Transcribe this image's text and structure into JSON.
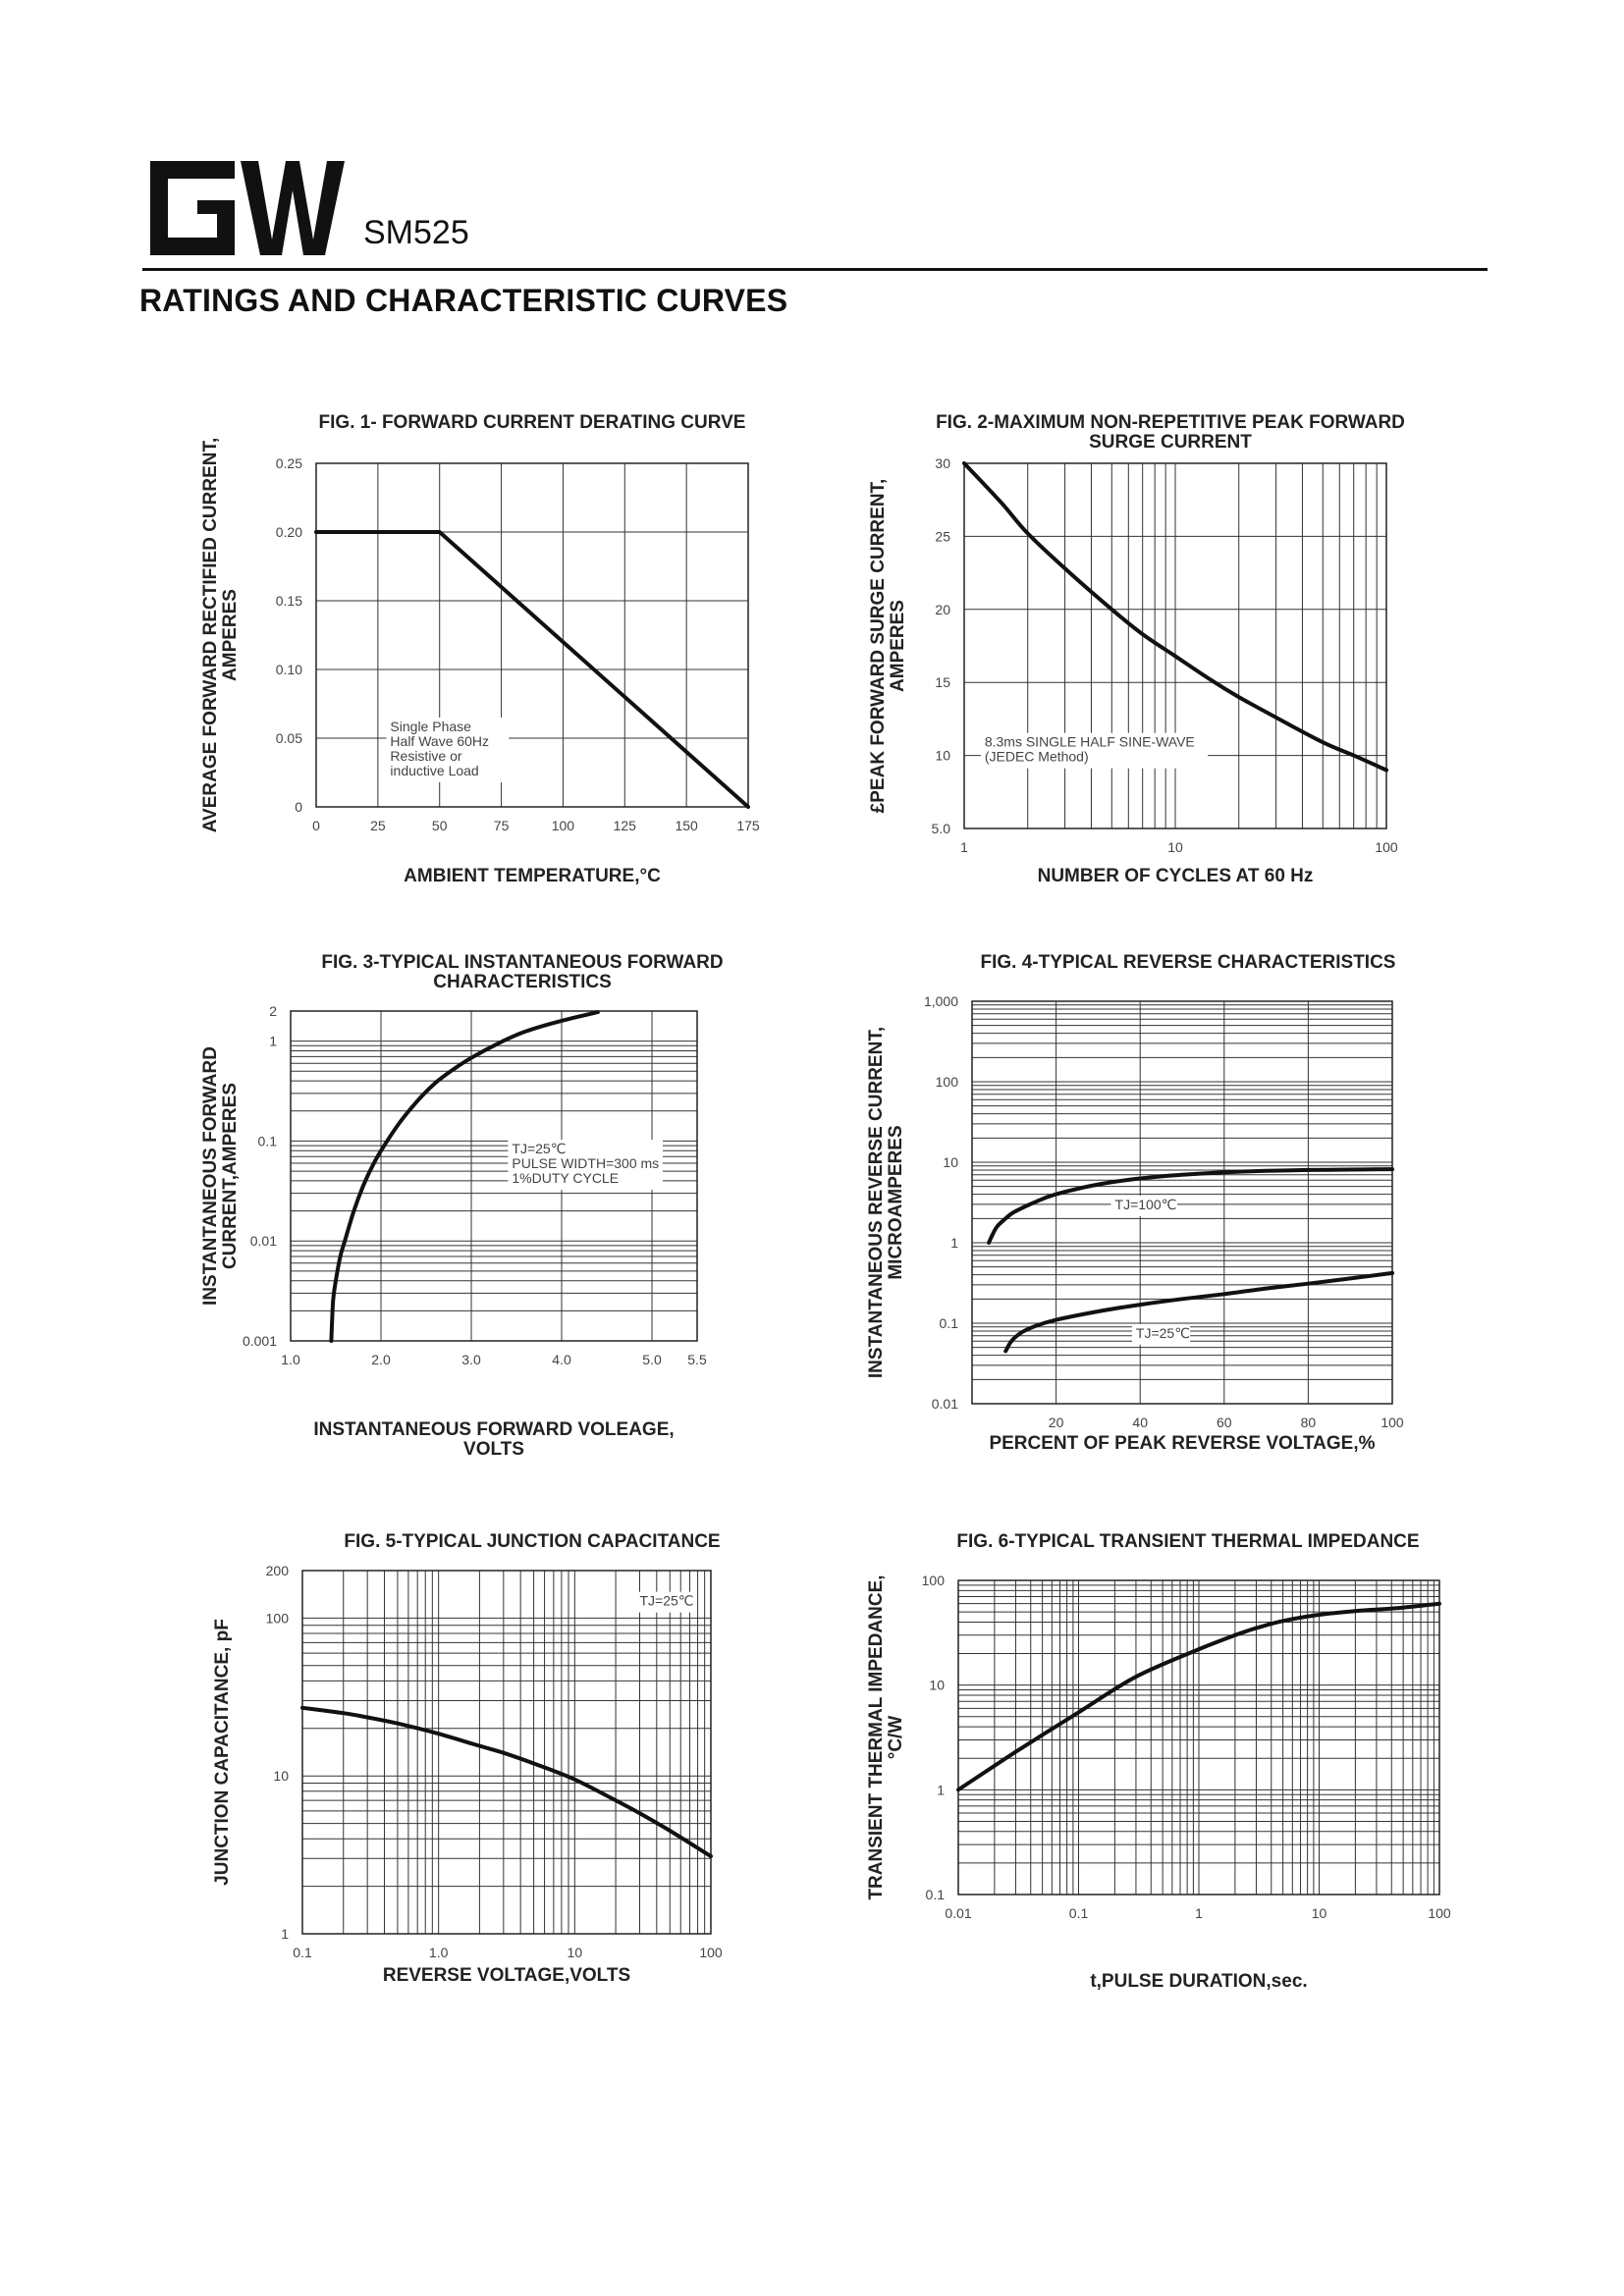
{
  "header": {
    "logo_text": "GW",
    "part_number": "SM525",
    "page_heading": "RATINGS AND CHARACTERISTIC CURVES"
  },
  "chart_data": [
    {
      "id": "fig1",
      "type": "line",
      "title": [
        "FIG. 1- FORWARD CURRENT DERATING CURVE"
      ],
      "xlabel": [
        "AMBIENT TEMPERATURE,°C"
      ],
      "ylabel": [
        "AVERAGE FORWARD RECTIFIED CURRENT,",
        "AMPERES"
      ],
      "x_scale": "linear",
      "y_scale": "linear",
      "xlim": [
        0,
        175
      ],
      "ylim": [
        0,
        0.25
      ],
      "xticks": [
        0,
        25,
        50,
        75,
        100,
        125,
        150,
        175
      ],
      "xtick_labels": [
        "0",
        "25",
        "50",
        "75",
        "100",
        "125",
        "150",
        "175"
      ],
      "yticks": [
        0,
        0.05,
        0.1,
        0.15,
        0.2,
        0.25
      ],
      "ytick_labels": [
        "0",
        "0.05",
        "0.10",
        "0.15",
        "0.20",
        "0.25"
      ],
      "grid": true,
      "series": [
        {
          "x": [
            0,
            50,
            175
          ],
          "y": [
            0.2,
            0.2,
            0
          ]
        }
      ],
      "annotations": [
        {
          "lines": [
            "Single Phase",
            "Half Wave 60Hz",
            "Resistive or",
            "inductive Load"
          ],
          "x": 30,
          "y": 0.055
        }
      ]
    },
    {
      "id": "fig2",
      "type": "line",
      "title": [
        "FIG. 2-MAXIMUM NON-REPETITIVE PEAK FORWARD",
        "SURGE CURRENT"
      ],
      "xlabel": [
        "NUMBER OF CYCLES AT 60 Hz"
      ],
      "ylabel": [
        "£PEAK  FORWARD SURGE CURRENT,",
        "AMPERES"
      ],
      "x_scale": "log",
      "y_scale": "linear",
      "xlim": [
        1,
        100
      ],
      "ylim": [
        5,
        30
      ],
      "xticks": [
        1,
        10,
        100
      ],
      "xtick_labels": [
        "1",
        "10",
        "100"
      ],
      "yticks": [
        5,
        10,
        15,
        20,
        25,
        30
      ],
      "ytick_labels": [
        "5.0",
        "10",
        "15",
        "20",
        "25",
        "30"
      ],
      "grid": true,
      "series": [
        {
          "x": [
            1,
            1.5,
            2,
            3,
            5,
            7,
            10,
            15,
            20,
            30,
            50,
            70,
            100
          ],
          "y": [
            30,
            27.3,
            25.2,
            22.8,
            20,
            18.3,
            16.8,
            15.1,
            14,
            12.6,
            10.9,
            10,
            9
          ]
        }
      ],
      "annotations": [
        {
          "lines": [
            "8.3ms SINGLE HALF SINE-WAVE",
            "(JEDEC Method)"
          ],
          "x": 1.25,
          "y": 10.6
        }
      ]
    },
    {
      "id": "fig3",
      "type": "line",
      "title": [
        "FIG. 3-TYPICAL INSTANTANEOUS FORWARD",
        "CHARACTERISTICS"
      ],
      "xlabel": [
        "INSTANTANEOUS FORWARD VOLEAGE,",
        "VOLTS"
      ],
      "ylabel": [
        "INSTANTANEOUS FORWARD",
        "CURRENT,AMPERES"
      ],
      "x_scale": "linear",
      "y_scale": "log",
      "xlim": [
        1.0,
        5.5
      ],
      "ylim": [
        0.001,
        2
      ],
      "xticks": [
        1.0,
        2.0,
        3.0,
        4.0,
        5.0,
        5.5
      ],
      "xtick_labels": [
        "1.0",
        "2.0",
        "3.0",
        "4.0",
        "5.0",
        "5.5"
      ],
      "yticks": [
        0.001,
        0.01,
        0.1,
        1,
        2
      ],
      "ytick_labels": [
        "0.001",
        "0.01",
        "0.1",
        "1",
        "2"
      ],
      "grid": true,
      "series": [
        {
          "x": [
            1.45,
            1.47,
            1.5,
            1.55,
            1.6,
            1.7,
            1.8,
            1.9,
            2.0,
            2.2,
            2.4,
            2.6,
            2.8,
            3.0,
            3.3,
            3.6,
            4.0,
            4.4
          ],
          "y": [
            0.001,
            0.0025,
            0.004,
            0.007,
            0.01,
            0.02,
            0.035,
            0.055,
            0.08,
            0.15,
            0.25,
            0.38,
            0.52,
            0.68,
            0.95,
            1.25,
            1.6,
            1.95
          ]
        }
      ],
      "annotations": [
        {
          "lines": [
            "TJ=25℃",
            "PULSE WIDTH=300 ms",
            "1%DUTY CYCLE"
          ],
          "x": 3.45,
          "y": 0.075
        }
      ]
    },
    {
      "id": "fig4",
      "type": "line",
      "title": [
        "FIG. 4-TYPICAL REVERSE CHARACTERISTICS"
      ],
      "xlabel": [
        "PERCENT OF PEAK REVERSE VOLTAGE,%"
      ],
      "ylabel": [
        "INSTANTANEOUS REVERSE CURRENT,",
        "MICROAMPERES"
      ],
      "x_scale": "linear",
      "y_scale": "log",
      "xlim": [
        0,
        100
      ],
      "ylim": [
        0.01,
        1000
      ],
      "xticks": [
        0,
        20,
        40,
        60,
        80,
        100
      ],
      "xtick_labels": [
        "",
        "20",
        "40",
        "60",
        "80",
        "100"
      ],
      "yticks": [
        0.01,
        0.1,
        1,
        10,
        100,
        1000
      ],
      "ytick_labels": [
        "0.01",
        "0.1",
        "1",
        "10",
        "100",
        "1,000"
      ],
      "grid": true,
      "series": [
        {
          "name": "TJ=100℃",
          "x": [
            4,
            5,
            6,
            8,
            10,
            15,
            20,
            30,
            40,
            50,
            60,
            70,
            80,
            90,
            100
          ],
          "y": [
            1.0,
            1.3,
            1.6,
            2.0,
            2.4,
            3.2,
            4.0,
            5.3,
            6.3,
            7.0,
            7.5,
            7.8,
            8.0,
            8.1,
            8.2
          ]
        },
        {
          "name": "TJ=25℃",
          "x": [
            8,
            9,
            10,
            12,
            15,
            20,
            30,
            40,
            50,
            60,
            70,
            80,
            90,
            100
          ],
          "y": [
            0.045,
            0.056,
            0.065,
            0.078,
            0.092,
            0.11,
            0.14,
            0.17,
            0.2,
            0.23,
            0.27,
            0.31,
            0.36,
            0.42
          ]
        }
      ],
      "annotations": [
        {
          "lines": [
            "TJ=100℃"
          ],
          "x": 34,
          "y": 2.6
        },
        {
          "lines": [
            "TJ=25℃"
          ],
          "x": 39,
          "y": 0.066
        }
      ]
    },
    {
      "id": "fig5",
      "type": "line",
      "title": [
        "FIG. 5-TYPICAL JUNCTION CAPACITANCE"
      ],
      "xlabel": [
        "REVERSE VOLTAGE,VOLTS"
      ],
      "ylabel": [
        "JUNCTION CAPACITANCE, pF"
      ],
      "x_scale": "log",
      "y_scale": "log",
      "xlim": [
        0.1,
        100
      ],
      "ylim": [
        1,
        200
      ],
      "xticks": [
        0.1,
        1,
        10,
        100
      ],
      "xtick_labels": [
        "0.1",
        "1.0",
        "10",
        "100"
      ],
      "yticks": [
        1,
        10,
        100,
        200
      ],
      "ytick_labels": [
        "1",
        "10",
        "100",
        "200"
      ],
      "grid": true,
      "series": [
        {
          "x": [
            0.1,
            0.2,
            0.3,
            0.5,
            1,
            2,
            3,
            5,
            10,
            20,
            30,
            50,
            100
          ],
          "y": [
            27,
            25,
            23.5,
            21.5,
            18.5,
            15.5,
            14,
            12,
            9.5,
            7,
            5.8,
            4.5,
            3.1
          ]
        }
      ],
      "annotations": [
        {
          "lines": [
            "TJ=25℃"
          ],
          "x": 30,
          "y": 120
        }
      ]
    },
    {
      "id": "fig6",
      "type": "line",
      "title": [
        "FIG. 6-TYPICAL TRANSIENT THERMAL IMPEDANCE"
      ],
      "xlabel": [
        "t,PULSE DURATION,sec."
      ],
      "ylabel": [
        "TRANSIENT THERMAL IMPEDANCE,",
        "°C/W"
      ],
      "x_scale": "log",
      "y_scale": "log",
      "xlim": [
        0.01,
        100
      ],
      "ylim": [
        0.1,
        100
      ],
      "xticks": [
        0.01,
        0.1,
        1,
        10,
        100
      ],
      "xtick_labels": [
        "0.01",
        "0.1",
        "1",
        "10",
        "100"
      ],
      "yticks": [
        0.1,
        1,
        10,
        100
      ],
      "ytick_labels": [
        "0.1",
        "1",
        "10",
        "100"
      ],
      "grid": true,
      "series": [
        {
          "x": [
            0.01,
            0.03,
            0.1,
            0.3,
            1,
            2,
            3,
            5,
            10,
            20,
            50,
            100
          ],
          "y": [
            1.0,
            2.3,
            5.5,
            12,
            22,
            30,
            35,
            41,
            47,
            51,
            55,
            60
          ]
        }
      ]
    }
  ]
}
